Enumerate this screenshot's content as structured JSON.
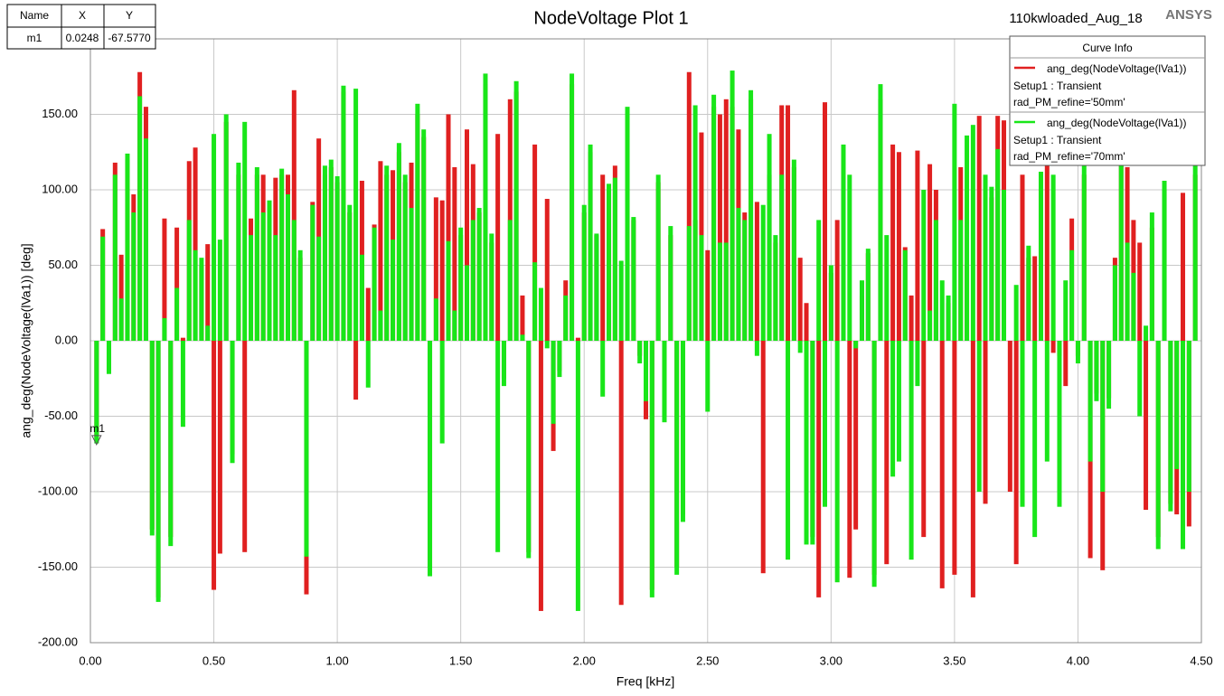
{
  "chart_data": {
    "type": "bar",
    "title": "NodeVoltage Plot 1",
    "subtitle": "110kwloaded_Aug_18",
    "brand": "ANSYS",
    "x_label": "Freq [kHz]",
    "y_label": "ang_deg(NodeVoltage(lVa1)) [deg]",
    "legend_title": "Curve Info",
    "grid": true,
    "xlim": [
      0,
      4.5
    ],
    "ylim": [
      -200,
      200
    ],
    "xticks": [
      {
        "value": 0,
        "label": "0.00"
      },
      {
        "value": 0.5,
        "label": "0.50"
      },
      {
        "value": 1,
        "label": "1.00"
      },
      {
        "value": 1.5,
        "label": "1.50"
      },
      {
        "value": 2,
        "label": "2.00"
      },
      {
        "value": 2.5,
        "label": "2.50"
      },
      {
        "value": 3,
        "label": "3.00"
      },
      {
        "value": 3.5,
        "label": "3.50"
      },
      {
        "value": 4,
        "label": "4.00"
      },
      {
        "value": 4.5,
        "label": "4.50"
      }
    ],
    "yticks": [
      {
        "value": -200,
        "label": "-200.00"
      },
      {
        "value": -150,
        "label": "-150.00"
      },
      {
        "value": -100,
        "label": "-100.00"
      },
      {
        "value": -50,
        "label": "-50.00"
      },
      {
        "value": 0,
        "label": "0.00"
      },
      {
        "value": 50,
        "label": "50.00"
      },
      {
        "value": 100,
        "label": "100.00"
      },
      {
        "value": 150,
        "label": "150.00"
      }
    ],
    "marker_table": {
      "header": [
        "Name",
        "X",
        "Y"
      ],
      "rows": [
        [
          "m1",
          "0.0248",
          "-67.5770"
        ]
      ]
    },
    "marker": {
      "name": "m1",
      "x": 0.0248,
      "y": -67.577
    },
    "x": [
      0.025,
      0.05,
      0.075,
      0.1,
      0.125,
      0.15,
      0.175,
      0.2,
      0.225,
      0.25,
      0.275,
      0.3,
      0.325,
      0.35,
      0.375,
      0.4,
      0.425,
      0.45,
      0.475,
      0.5,
      0.525,
      0.55,
      0.575,
      0.6,
      0.625,
      0.65,
      0.675,
      0.7,
      0.725,
      0.75,
      0.775,
      0.8,
      0.825,
      0.85,
      0.875,
      0.9,
      0.925,
      0.95,
      0.975,
      1,
      1.025,
      1.05,
      1.075,
      1.1,
      1.125,
      1.15,
      1.175,
      1.2,
      1.225,
      1.25,
      1.275,
      1.3,
      1.325,
      1.35,
      1.375,
      1.4,
      1.425,
      1.45,
      1.475,
      1.5,
      1.525,
      1.55,
      1.575,
      1.6,
      1.625,
      1.65,
      1.675,
      1.7,
      1.725,
      1.75,
      1.775,
      1.8,
      1.825,
      1.85,
      1.875,
      1.9,
      1.925,
      1.95,
      1.975,
      2,
      2.025,
      2.05,
      2.075,
      2.1,
      2.125,
      2.15,
      2.175,
      2.2,
      2.225,
      2.25,
      2.275,
      2.3,
      2.325,
      2.35,
      2.375,
      2.4,
      2.425,
      2.45,
      2.475,
      2.5,
      2.525,
      2.55,
      2.575,
      2.6,
      2.625,
      2.65,
      2.675,
      2.7,
      2.725,
      2.75,
      2.775,
      2.8,
      2.825,
      2.85,
      2.875,
      2.9,
      2.925,
      2.95,
      2.975,
      3,
      3.025,
      3.05,
      3.075,
      3.1,
      3.125,
      3.15,
      3.175,
      3.2,
      3.225,
      3.25,
      3.275,
      3.3,
      3.325,
      3.35,
      3.375,
      3.4,
      3.425,
      3.45,
      3.475,
      3.5,
      3.525,
      3.55,
      3.575,
      3.6,
      3.625,
      3.65,
      3.675,
      3.7,
      3.725,
      3.75,
      3.775,
      3.8,
      3.825,
      3.85,
      3.875,
      3.9,
      3.925,
      3.95,
      3.975,
      4,
      4.025,
      4.05,
      4.075,
      4.1,
      4.125,
      4.15,
      4.175,
      4.2,
      4.225,
      4.25,
      4.275,
      4.3,
      4.325,
      4.35,
      4.375,
      4.4,
      4.425,
      4.45,
      4.475
    ],
    "series": [
      {
        "name": "ang_deg(NodeVoltage(lVa1))",
        "setup": "Setup1 : Transient",
        "variation": "rad_PM_refine='50mm'",
        "color": "#e02020",
        "values": [
          -65,
          74,
          -20,
          118,
          57,
          120,
          97,
          178,
          155,
          -125,
          -170,
          81,
          -130,
          75,
          2,
          119,
          128,
          50,
          64,
          -165,
          -141,
          145,
          -75,
          110,
          -140,
          81,
          110,
          110,
          90,
          108,
          110,
          110,
          166,
          55,
          -168,
          92,
          134,
          110,
          115,
          105,
          165,
          85,
          -39,
          106,
          35,
          77,
          119,
          110,
          113,
          125,
          105,
          118,
          150,
          135,
          -150,
          95,
          93,
          150,
          115,
          70,
          140,
          117,
          85,
          170,
          65,
          137,
          -25,
          160,
          165,
          30,
          -140,
          130,
          -179,
          94,
          -73,
          -20,
          40,
          170,
          2,
          85,
          125,
          70,
          110,
          100,
          116,
          -175,
          150,
          80,
          -10,
          -52,
          -165,
          105,
          -50,
          70,
          -150,
          -115,
          178,
          80,
          138,
          60,
          155,
          150,
          160,
          155,
          140,
          85,
          160,
          92,
          -154,
          110,
          65,
          156,
          156,
          115,
          55,
          25,
          -130,
          -170,
          158,
          45,
          80,
          120,
          -157,
          -125,
          30,
          58,
          -155,
          160,
          -148,
          130,
          125,
          62,
          30,
          126,
          -130,
          117,
          100,
          -164,
          25,
          -155,
          115,
          50,
          -170,
          149,
          -108,
          95,
          149,
          146,
          -100,
          -148,
          110,
          55,
          56,
          100,
          131,
          -8,
          -10,
          -30,
          81,
          -10,
          110,
          -144,
          -35,
          -152,
          -38,
          55,
          140,
          115,
          80,
          65,
          -112,
          75,
          -130,
          100,
          -108,
          -115,
          98,
          -123,
          110
        ]
      },
      {
        "name": "ang_deg(NodeVoltage(lVa1))",
        "setup": "Setup1 : Transient",
        "variation": "rad_PM_refine='70mm'",
        "color": "#19e619",
        "values": [
          -68,
          69,
          -22,
          110,
          28,
          124,
          85,
          162,
          134,
          -129,
          -173,
          15,
          -136,
          35,
          -57,
          80,
          60,
          55,
          10,
          137,
          67,
          150,
          -81,
          118,
          145,
          70,
          115,
          85,
          93,
          70,
          114,
          97,
          80,
          60,
          -143,
          90,
          69,
          116,
          120,
          109,
          169,
          90,
          167,
          57,
          -31,
          75,
          20,
          116,
          67,
          131,
          110,
          88,
          157,
          140,
          -156,
          28,
          -68,
          66,
          20,
          75,
          50,
          80,
          88,
          177,
          71,
          -140,
          -30,
          80,
          172,
          4,
          -144,
          52,
          35,
          -5,
          -55,
          -24,
          30,
          177,
          -179,
          90,
          130,
          71,
          -37,
          104,
          108,
          53,
          155,
          82,
          -15,
          -40,
          -170,
          110,
          -54,
          76,
          -155,
          -120,
          76,
          156,
          70,
          -47,
          163,
          65,
          65,
          179,
          88,
          80,
          166,
          -10,
          90,
          137,
          70,
          110,
          -145,
          120,
          -8,
          -135,
          -135,
          80,
          -110,
          50,
          -160,
          130,
          110,
          -5,
          40,
          61,
          -163,
          170,
          70,
          -90,
          -80,
          60,
          -145,
          -30,
          100,
          20,
          80,
          40,
          30,
          157,
          80,
          136,
          143,
          -100,
          110,
          102,
          127,
          100,
          0,
          37,
          -110,
          63,
          -130,
          112,
          -80,
          110,
          -110,
          40,
          60,
          -15,
          120,
          -80,
          -40,
          -100,
          -45,
          50,
          150,
          65,
          45,
          -50,
          10,
          85,
          -138,
          106,
          -113,
          -85,
          -138,
          -100,
          118
        ]
      }
    ]
  }
}
